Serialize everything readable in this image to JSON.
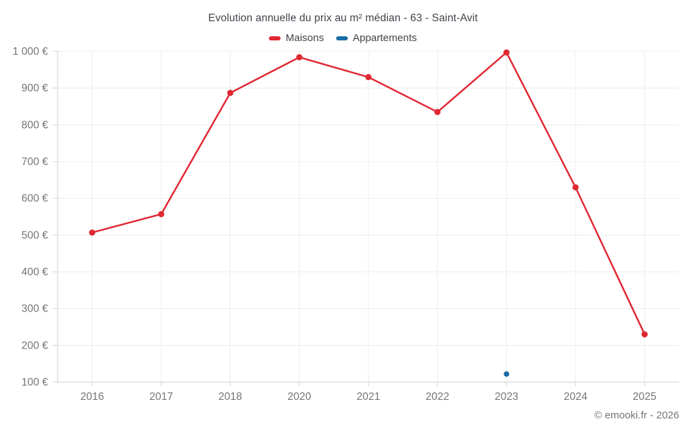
{
  "header": {
    "title": "Evolution annuelle du prix au m² médian - 63 - Saint-Avit"
  },
  "legend": {
    "items": [
      {
        "label": "Maisons",
        "color": "#e02832"
      },
      {
        "label": "Appartements",
        "color": "#1b6ca6"
      }
    ]
  },
  "footer": {
    "copyright": "© emooki.fr - 2026"
  },
  "chart_data": {
    "type": "line",
    "title": "Evolution annuelle du prix au m² médian - 63 - Saint-Avit",
    "categories": [
      "2016",
      "2017",
      "2018",
      "2020",
      "2021",
      "2022",
      "2023",
      "2024",
      "2025"
    ],
    "series": [
      {
        "name": "Maisons",
        "color": "#e02832",
        "values": [
          507,
          557,
          887,
          984,
          930,
          835,
          997,
          630,
          230
        ]
      },
      {
        "name": "Appartements",
        "color": "#1b6ca6",
        "values": [
          null,
          null,
          null,
          null,
          null,
          null,
          122,
          null,
          null
        ]
      }
    ],
    "xlabel": "",
    "ylabel": "",
    "ylim": [
      100,
      1000
    ],
    "ytick_step": 100,
    "ytick_labels": [
      "100 €",
      "200 €",
      "300 €",
      "400 €",
      "500 €",
      "600 €",
      "700 €",
      "800 €",
      "900 €",
      "1 000 €"
    ],
    "grid": true,
    "legend_position": "top",
    "unit": "€"
  }
}
